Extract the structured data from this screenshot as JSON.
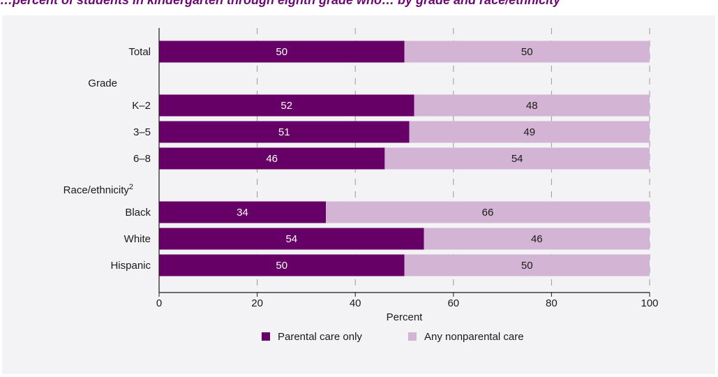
{
  "title_fragment": "…percent of students in kindergarten through eighth grade who… by grade and race/ethnicity",
  "chart_data": {
    "type": "bar",
    "stacked": true,
    "orientation": "horizontal",
    "xlabel": "Percent",
    "xlim": [
      0,
      100
    ],
    "x_ticks": [
      "0",
      "20",
      "40",
      "60",
      "80",
      "100"
    ],
    "grid": "vertical dashed",
    "legend_position": "bottom-center",
    "rows": [
      {
        "label": "Total",
        "kind": "category",
        "values": [
          50,
          50
        ]
      },
      {
        "label": "Grade",
        "kind": "group"
      },
      {
        "label": "K–2",
        "kind": "category",
        "values": [
          52,
          48
        ]
      },
      {
        "label": "3–5",
        "kind": "category",
        "values": [
          51,
          49
        ]
      },
      {
        "label": "6–8",
        "kind": "category",
        "values": [
          46,
          54
        ]
      },
      {
        "label": "Race/ethnicity",
        "sup": "2",
        "kind": "group"
      },
      {
        "label": "Black",
        "kind": "category",
        "values": [
          34,
          66
        ]
      },
      {
        "label": "White",
        "kind": "category",
        "values": [
          54,
          46
        ]
      },
      {
        "label": "Hispanic",
        "kind": "category",
        "values": [
          50,
          50
        ]
      }
    ],
    "series": [
      {
        "name": "Parental care only",
        "color": "#660066"
      },
      {
        "name": "Any nonparental care",
        "color": "#d4b4d4"
      }
    ]
  }
}
